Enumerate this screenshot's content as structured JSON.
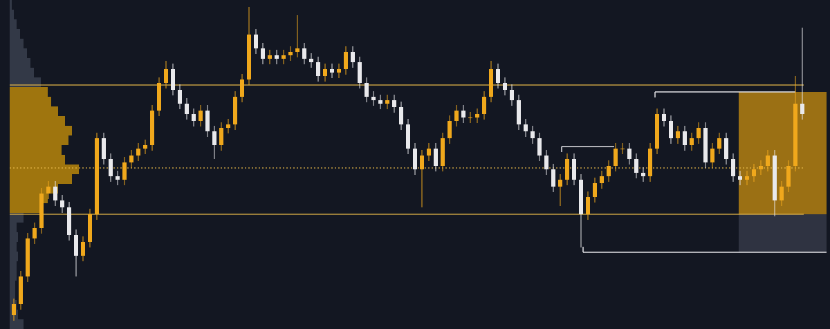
{
  "chart_data": {
    "type": "candlestick",
    "xlim": [
      -2,
      118
    ],
    "ylim": [
      0,
      476
    ],
    "up_color": "#f0a81c",
    "down_color": "#e9e9ec",
    "open": [
      20,
      36,
      76,
      131,
      146,
      196,
      206,
      186,
      176,
      136,
      106,
      126,
      166,
      276,
      246,
      221,
      216,
      241,
      251,
      261,
      266,
      316,
      356,
      376,
      346,
      326,
      311,
      301,
      316,
      286,
      266,
      291,
      296,
      336,
      361,
      426,
      406,
      391,
      396,
      391,
      396,
      401,
      406,
      391,
      386,
      366,
      376,
      371,
      376,
      401,
      386,
      356,
      336,
      331,
      326,
      331,
      321,
      296,
      261,
      231,
      251,
      261,
      236,
      276,
      301,
      316,
      306,
      306,
      311,
      336,
      376,
      356,
      346,
      331,
      296,
      286,
      276,
      251,
      231,
      206,
      216,
      246,
      216,
      166,
      191,
      211,
      221,
      236,
      261,
      261,
      246,
      226,
      221,
      261,
      311,
      301,
      276,
      286,
      266,
      276,
      291,
      241,
      261,
      276,
      246,
      221,
      216,
      221,
      231,
      236,
      251,
      186,
      206,
      236,
      326
    ],
    "high": [
      44,
      84,
      139,
      154,
      204,
      214,
      214,
      194,
      184,
      144,
      134,
      174,
      284,
      284,
      254,
      229,
      249,
      259,
      269,
      274,
      324,
      364,
      388,
      384,
      354,
      334,
      319,
      324,
      324,
      294,
      299,
      304,
      344,
      369,
      466,
      434,
      414,
      404,
      404,
      404,
      409,
      454,
      414,
      399,
      394,
      384,
      384,
      384,
      409,
      409,
      394,
      364,
      344,
      339,
      339,
      339,
      329,
      304,
      269,
      259,
      269,
      269,
      284,
      309,
      324,
      324,
      314,
      319,
      344,
      388,
      384,
      364,
      354,
      339,
      304,
      294,
      284,
      259,
      239,
      224,
      254,
      254,
      224,
      199,
      219,
      229,
      244,
      269,
      269,
      269,
      254,
      234,
      269,
      319,
      319,
      309,
      294,
      294,
      284,
      299,
      299,
      269,
      284,
      284,
      254,
      229,
      229,
      239,
      244,
      259,
      259,
      214,
      244,
      366,
      436
    ],
    "low": [
      12,
      28,
      68,
      123,
      138,
      188,
      178,
      168,
      128,
      76,
      98,
      118,
      158,
      238,
      213,
      208,
      208,
      233,
      243,
      253,
      258,
      308,
      348,
      338,
      318,
      303,
      293,
      293,
      278,
      246,
      258,
      283,
      288,
      328,
      353,
      398,
      383,
      383,
      383,
      383,
      388,
      393,
      383,
      378,
      358,
      358,
      363,
      363,
      368,
      378,
      348,
      328,
      323,
      318,
      318,
      313,
      288,
      253,
      223,
      176,
      243,
      228,
      228,
      268,
      293,
      298,
      298,
      298,
      303,
      328,
      348,
      338,
      323,
      288,
      278,
      268,
      243,
      223,
      198,
      178,
      208,
      208,
      118,
      158,
      183,
      203,
      213,
      228,
      253,
      238,
      218,
      213,
      213,
      253,
      293,
      268,
      268,
      258,
      258,
      268,
      233,
      233,
      253,
      238,
      213,
      208,
      208,
      213,
      223,
      228,
      163,
      178,
      198,
      228,
      303
    ],
    "close": [
      36,
      76,
      131,
      146,
      196,
      206,
      186,
      176,
      136,
      106,
      126,
      166,
      276,
      246,
      221,
      216,
      241,
      251,
      261,
      266,
      316,
      356,
      376,
      346,
      326,
      311,
      301,
      316,
      286,
      266,
      291,
      296,
      336,
      361,
      426,
      406,
      391,
      396,
      391,
      396,
      401,
      406,
      391,
      386,
      366,
      376,
      371,
      376,
      401,
      386,
      356,
      336,
      331,
      326,
      331,
      321,
      296,
      261,
      231,
      251,
      261,
      236,
      276,
      301,
      316,
      306,
      306,
      311,
      336,
      376,
      356,
      346,
      331,
      296,
      286,
      276,
      251,
      231,
      206,
      216,
      246,
      216,
      166,
      191,
      211,
      221,
      236,
      261,
      261,
      246,
      226,
      221,
      261,
      311,
      301,
      276,
      286,
      266,
      276,
      291,
      241,
      261,
      276,
      246,
      221,
      216,
      221,
      231,
      236,
      251,
      186,
      206,
      236,
      326,
      311
    ],
    "levels": {
      "value_area_high": 353,
      "point_of_control": 233,
      "value_area_low": 166,
      "color": "#e8b94a"
    },
    "profile": {
      "bins": [
        0,
        14,
        28,
        42,
        56,
        70,
        84,
        98,
        112,
        126,
        140,
        154,
        168,
        182,
        196,
        210,
        224,
        238,
        252,
        266,
        280,
        294,
        308,
        322,
        336,
        350,
        364,
        378,
        392,
        406,
        420,
        434,
        448,
        462,
        476
      ],
      "values": [
        20,
        12,
        10,
        8,
        8,
        10,
        10,
        12,
        10,
        12,
        10,
        20,
        45,
        55,
        70,
        90,
        100,
        80,
        75,
        85,
        90,
        80,
        70,
        60,
        55,
        45,
        35,
        30,
        25,
        20,
        15,
        10,
        6,
        3
      ],
      "xlim": [
        0,
        100
      ],
      "inside_color": "#b8860b",
      "outside_color": "#3a3f4d"
    },
    "zones": [
      {
        "x": [
          104.8,
          117.5
        ],
        "y": [
          166,
          343
        ],
        "color": "#c98f10"
      },
      {
        "x": [
          104.8,
          117.5
        ],
        "y": [
          111,
          166
        ],
        "color": "#3a3e4c"
      }
    ],
    "brackets": [
      {
        "x": [
          92.7,
          113
        ],
        "y": 343
      },
      {
        "x": [
          79.2,
          86.8
        ],
        "y": 264
      },
      {
        "x": [
          82.3,
          117.5
        ],
        "y": 111
      }
    ]
  }
}
